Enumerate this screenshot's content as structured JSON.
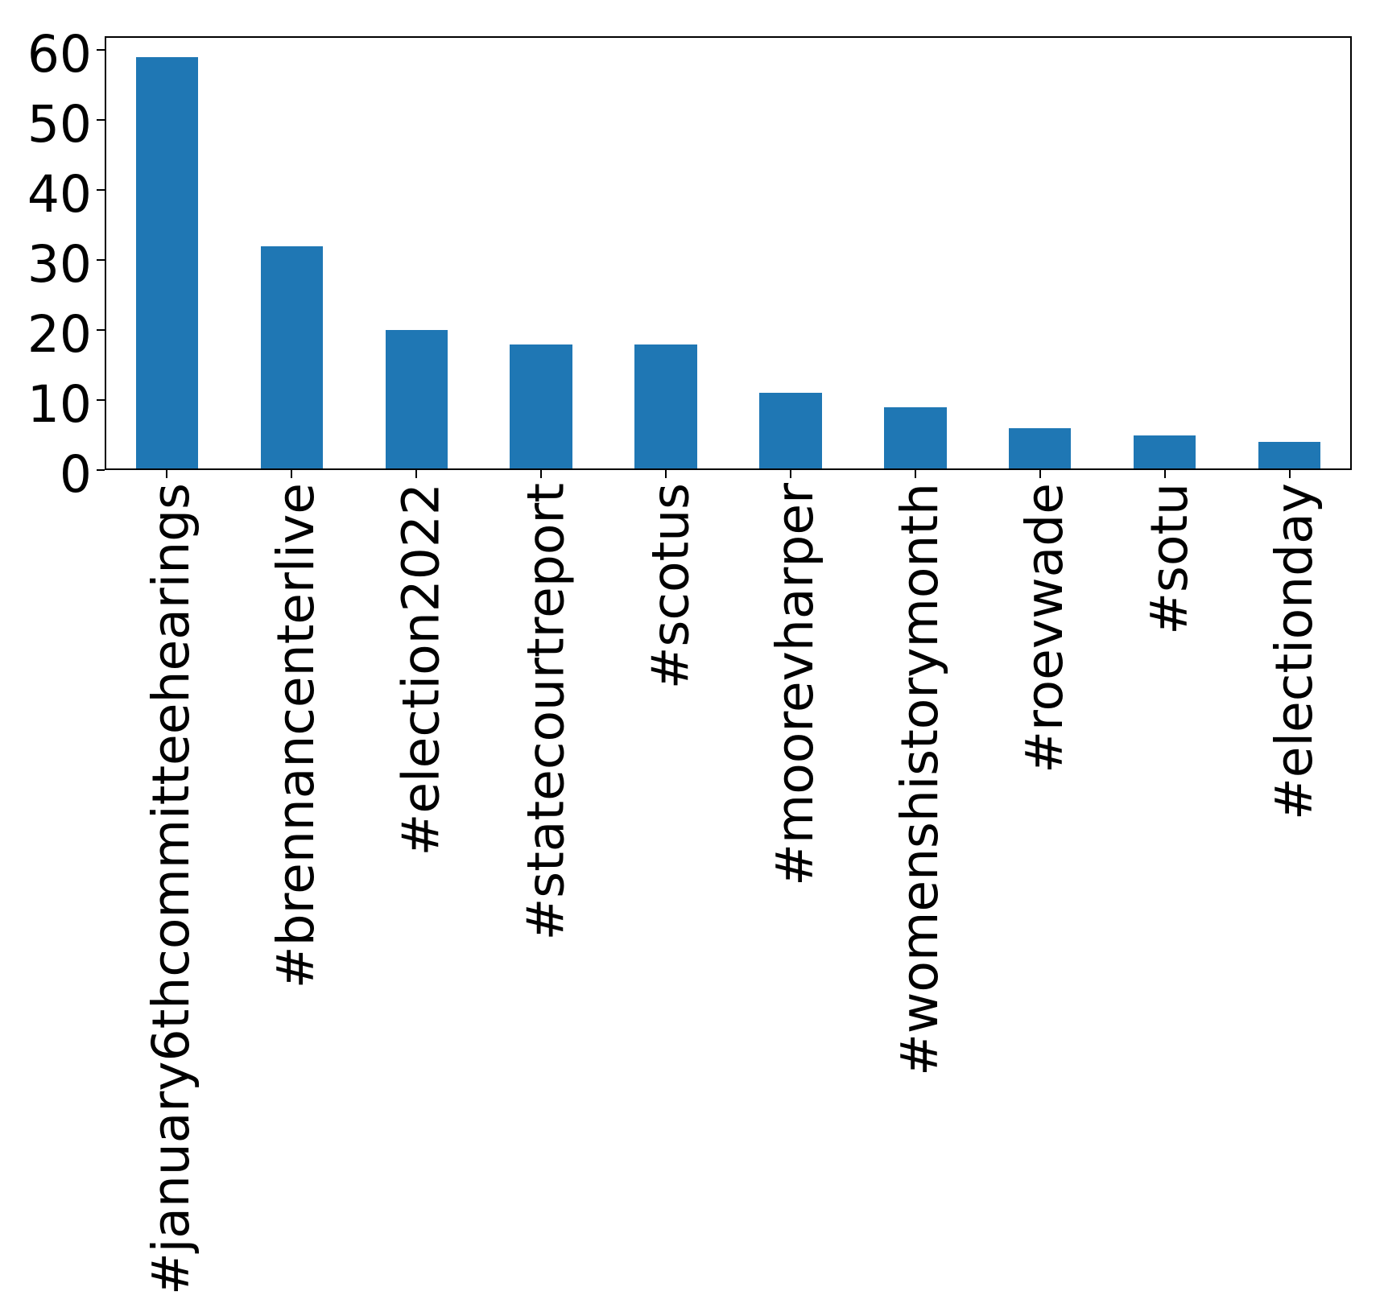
{
  "chart_data": {
    "type": "bar",
    "title": "",
    "xlabel": "",
    "ylabel": "",
    "categories": [
      "#january6thcommitteehearings",
      "#brennancenterlive",
      "#election2022",
      "#statecourtreport",
      "#scotus",
      "#moorevharper",
      "#womenshistorymonth",
      "#roevwade",
      "#sotu",
      "#electionday"
    ],
    "values": [
      59,
      32,
      20,
      18,
      18,
      11,
      9,
      6,
      5,
      4
    ],
    "yticks": [
      0,
      10,
      20,
      30,
      40,
      50,
      60
    ],
    "ylim": [
      0,
      62
    ],
    "xlim_categories": [
      -0.5,
      9.5
    ],
    "bar_width_fraction": 0.5,
    "bar_color": "#1f77b4",
    "axis_color": "#000000",
    "background_color": "#ffffff",
    "grid": false,
    "legend": null,
    "x_tick_label_rotation_deg": 90
  }
}
